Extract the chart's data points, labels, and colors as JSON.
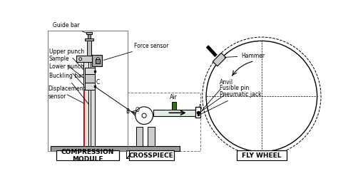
{
  "bg_color": "#ffffff",
  "line_color": "#000000",
  "red_line_color": "#cc0000",
  "green_color": "#3a6e1a",
  "dashed_color": "#555555",
  "labels": {
    "guide_bar": "Guide bar",
    "upper_punch": "Upper punch",
    "sample": "Sample",
    "lower_punch": "Lower punch",
    "buckling_bar": "Buckling bar",
    "displacement_sensor": "Displacement\nsensor",
    "force_sensor": "Force sensor",
    "air": "Air",
    "hammer": "Hammer",
    "anvil": "Anvil",
    "fusible_pin": "Fusible pin",
    "pneumatic_jack": "Pneumatic jack",
    "compression_module": "COMPRESSION\nMODULE",
    "crosspiece": "CROSSPIECE",
    "fly_wheel": "FLY WHEEL",
    "point_B": "B",
    "point_C": "C",
    "point_O": "O",
    "point_A": "A"
  },
  "fs": 5.5,
  "fs_bold": 6.5
}
